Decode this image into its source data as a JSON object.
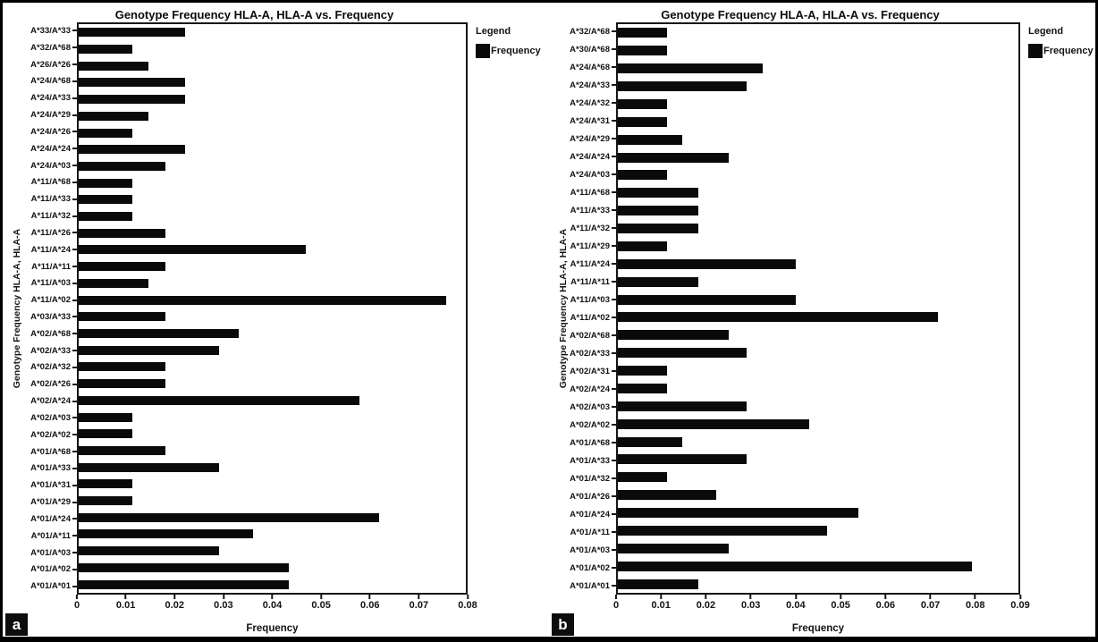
{
  "chart_data": [
    {
      "type": "bar",
      "orientation": "horizontal",
      "panel_label": "a",
      "title": "Genotype Frequency HLA-A, HLA-A vs. Frequency",
      "ylabel": "Genotype Frequency HLA-A, HLA-A",
      "xlabel": "Frequency",
      "legend_title": "Legend",
      "legend_entry": "Frequency",
      "legend_position": "right-top",
      "grid": false,
      "bar_color": "#0a0a0a",
      "xlim": [
        0,
        0.08
      ],
      "xticks": [
        "0",
        "0.01",
        "0.02",
        "0.03",
        "0.04",
        "0.05",
        "0.06",
        "0.07",
        "0.08"
      ],
      "categories": [
        "A*33/A*33",
        "A*32/A*68",
        "A*26/A*26",
        "A*24/A*68",
        "A*24/A*33",
        "A*24/A*29",
        "A*24/A*26",
        "A*24/A*24",
        "A*24/A*03",
        "A*11/A*68",
        "A*11/A*33",
        "A*11/A*32",
        "A*11/A*26",
        "A*11/A*24",
        "A*11/A*11",
        "A*11/A*03",
        "A*11/A*02",
        "A*03/A*33",
        "A*02/A*68",
        "A*02/A*33",
        "A*02/A*32",
        "A*02/A*26",
        "A*02/A*24",
        "A*02/A*03",
        "A*02/A*02",
        "A*01/A*68",
        "A*01/A*33",
        "A*01/A*31",
        "A*01/A*29",
        "A*01/A*24",
        "A*01/A*11",
        "A*01/A*03",
        "A*01/A*02",
        "A*01/A*01"
      ],
      "values": [
        0.022,
        0.011,
        0.0145,
        0.022,
        0.022,
        0.0145,
        0.011,
        0.022,
        0.018,
        0.011,
        0.011,
        0.011,
        0.018,
        0.047,
        0.018,
        0.0145,
        0.076,
        0.018,
        0.033,
        0.029,
        0.018,
        0.018,
        0.058,
        0.011,
        0.011,
        0.018,
        0.029,
        0.011,
        0.011,
        0.062,
        0.036,
        0.029,
        0.0435,
        0.0435
      ]
    },
    {
      "type": "bar",
      "orientation": "horizontal",
      "panel_label": "b",
      "title": "Genotype Frequency HLA-A, HLA-A vs. Frequency",
      "ylabel": "Genotype Frequency HLA-A, HLA-A",
      "xlabel": "Frequency",
      "legend_title": "Legend",
      "legend_entry": "Frequency",
      "legend_position": "right-top",
      "grid": false,
      "bar_color": "#0a0a0a",
      "xlim": [
        0,
        0.09
      ],
      "xticks": [
        "0",
        "0.01",
        "0.02",
        "0.03",
        "0.04",
        "0.05",
        "0.06",
        "0.07",
        "0.08",
        "0.09"
      ],
      "categories": [
        "A*32/A*68",
        "A*30/A*68",
        "A*24/A*68",
        "A*24/A*33",
        "A*24/A*32",
        "A*24/A*31",
        "A*24/A*29",
        "A*24/A*24",
        "A*24/A*03",
        "A*11/A*68",
        "A*11/A*33",
        "A*11/A*32",
        "A*11/A*29",
        "A*11/A*24",
        "A*11/A*11",
        "A*11/A*03",
        "A*11/A*02",
        "A*02/A*68",
        "A*02/A*33",
        "A*02/A*31",
        "A*02/A*24",
        "A*02/A*03",
        "A*02/A*02",
        "A*01/A*68",
        "A*01/A*33",
        "A*01/A*32",
        "A*01/A*26",
        "A*01/A*24",
        "A*01/A*11",
        "A*01/A*03",
        "A*01/A*02",
        "A*01/A*01"
      ],
      "values": [
        0.011,
        0.011,
        0.0325,
        0.029,
        0.011,
        0.011,
        0.0145,
        0.025,
        0.011,
        0.018,
        0.018,
        0.018,
        0.011,
        0.04,
        0.018,
        0.04,
        0.072,
        0.025,
        0.029,
        0.011,
        0.011,
        0.029,
        0.043,
        0.0145,
        0.029,
        0.011,
        0.022,
        0.054,
        0.047,
        0.025,
        0.0795,
        0.018
      ]
    }
  ]
}
